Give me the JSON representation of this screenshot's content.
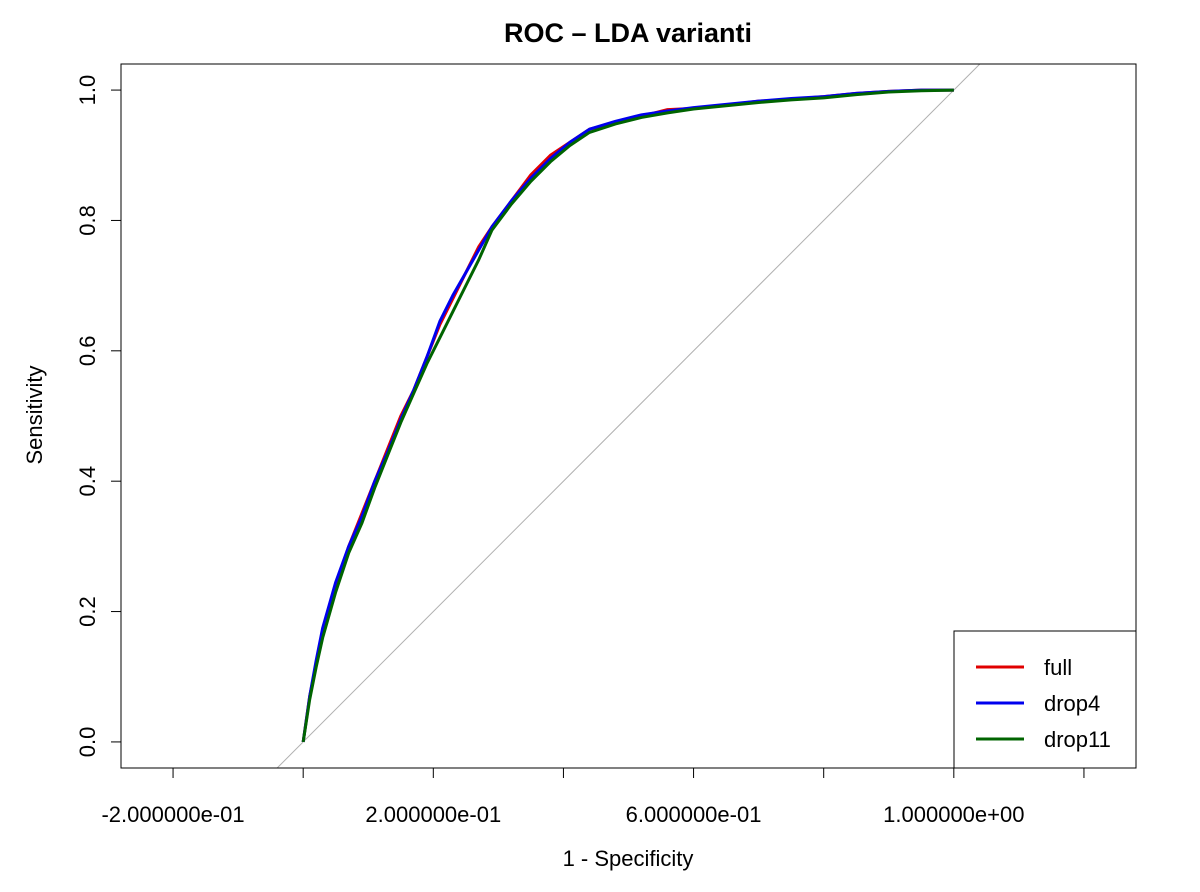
{
  "chart_data": {
    "type": "line",
    "title": "ROC – LDA varianti",
    "xlabel": "1 - Specificity",
    "ylabel": "Sensitivity",
    "xlim": [
      -0.28,
      1.28
    ],
    "ylim": [
      -0.04,
      1.04
    ],
    "x_ticks": [
      -0.2,
      0.0,
      0.2,
      0.4,
      0.6,
      0.8,
      1.0,
      1.2
    ],
    "x_tick_labels": [
      "-2.000000e-01",
      "",
      "2.000000e-01",
      "",
      "6.000000e-01",
      "",
      "1.000000e+00",
      ""
    ],
    "y_ticks": [
      0.0,
      0.2,
      0.4,
      0.6,
      0.8,
      1.0
    ],
    "y_tick_labels": [
      "0.0",
      "0.2",
      "0.4",
      "0.6",
      "0.8",
      "1.0"
    ],
    "reference_line": {
      "x": [
        -0.04,
        1.04
      ],
      "y": [
        -0.04,
        1.04
      ],
      "color": "#b0b0b0"
    },
    "legend_position": "bottom-right",
    "series": [
      {
        "name": "full",
        "color": "#e00000",
        "x": [
          0.0,
          0.01,
          0.02,
          0.03,
          0.05,
          0.07,
          0.09,
          0.11,
          0.13,
          0.15,
          0.17,
          0.19,
          0.21,
          0.23,
          0.25,
          0.27,
          0.29,
          0.32,
          0.35,
          0.38,
          0.41,
          0.44,
          0.48,
          0.52,
          0.56,
          0.6,
          0.65,
          0.7,
          0.75,
          0.8,
          0.85,
          0.9,
          0.95,
          1.0
        ],
        "y": [
          0.0,
          0.07,
          0.12,
          0.17,
          0.24,
          0.3,
          0.35,
          0.4,
          0.45,
          0.5,
          0.54,
          0.59,
          0.64,
          0.68,
          0.72,
          0.76,
          0.79,
          0.83,
          0.87,
          0.9,
          0.92,
          0.94,
          0.95,
          0.96,
          0.97,
          0.972,
          0.977,
          0.983,
          0.986,
          0.99,
          0.995,
          0.998,
          1.0,
          1.0
        ]
      },
      {
        "name": "drop4",
        "color": "#0000ee",
        "x": [
          0.0,
          0.01,
          0.02,
          0.03,
          0.05,
          0.07,
          0.09,
          0.11,
          0.13,
          0.15,
          0.17,
          0.19,
          0.21,
          0.23,
          0.25,
          0.27,
          0.29,
          0.32,
          0.35,
          0.38,
          0.41,
          0.44,
          0.48,
          0.52,
          0.56,
          0.6,
          0.65,
          0.7,
          0.75,
          0.8,
          0.85,
          0.9,
          0.95,
          1.0
        ],
        "y": [
          0.0,
          0.07,
          0.125,
          0.175,
          0.245,
          0.3,
          0.345,
          0.4,
          0.445,
          0.495,
          0.54,
          0.59,
          0.645,
          0.685,
          0.72,
          0.755,
          0.79,
          0.83,
          0.865,
          0.895,
          0.92,
          0.94,
          0.952,
          0.962,
          0.968,
          0.973,
          0.978,
          0.983,
          0.987,
          0.99,
          0.995,
          0.998,
          1.0,
          1.0
        ]
      },
      {
        "name": "drop11",
        "color": "#006400",
        "x": [
          0.0,
          0.01,
          0.02,
          0.03,
          0.05,
          0.07,
          0.09,
          0.11,
          0.13,
          0.15,
          0.17,
          0.19,
          0.21,
          0.23,
          0.25,
          0.27,
          0.29,
          0.32,
          0.35,
          0.38,
          0.41,
          0.44,
          0.48,
          0.52,
          0.56,
          0.6,
          0.65,
          0.7,
          0.75,
          0.8,
          0.85,
          0.9,
          0.95,
          1.0
        ],
        "y": [
          0.0,
          0.065,
          0.115,
          0.16,
          0.23,
          0.29,
          0.335,
          0.39,
          0.44,
          0.49,
          0.535,
          0.58,
          0.62,
          0.66,
          0.7,
          0.74,
          0.785,
          0.825,
          0.86,
          0.89,
          0.915,
          0.935,
          0.948,
          0.958,
          0.965,
          0.971,
          0.976,
          0.981,
          0.985,
          0.988,
          0.993,
          0.997,
          0.999,
          1.0
        ]
      }
    ]
  }
}
